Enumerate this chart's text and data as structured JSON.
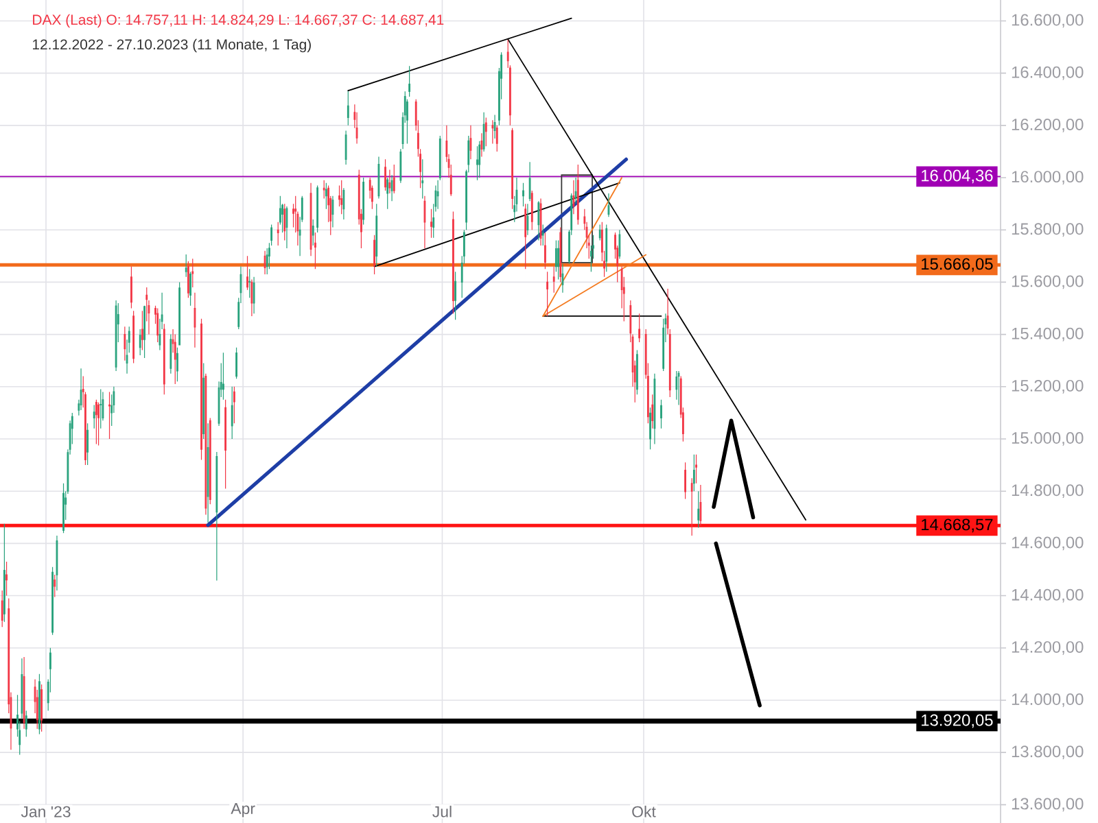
{
  "chart_data": {
    "type": "candlestick",
    "title": "DAX (Last)  O: 14.757,11  H: 14.824,29  L: 14.667,37  C: 14.687,41",
    "subtitle": "12.12.2022 - 27.10.2023   (11 Monate, 1 Tag)",
    "x": [
      "2022-12-12",
      "2022-12-13",
      "2022-12-14",
      "2022-12-15",
      "2022-12-16",
      "2022-12-19",
      "2022-12-20",
      "2022-12-21",
      "2022-12-22",
      "2022-12-23",
      "2022-12-27",
      "2022-12-28",
      "2022-12-29",
      "2022-12-30",
      "2023-01-02",
      "2023-01-03",
      "2023-01-04",
      "2023-01-05",
      "2023-01-06",
      "2023-01-09",
      "2023-01-10",
      "2023-01-11",
      "2023-01-12",
      "2023-01-13",
      "2023-01-16",
      "2023-01-17",
      "2023-01-18",
      "2023-01-19",
      "2023-01-20",
      "2023-01-23",
      "2023-01-24",
      "2023-01-25",
      "2023-01-26",
      "2023-01-27",
      "2023-01-30",
      "2023-01-31",
      "2023-02-01",
      "2023-02-02",
      "2023-02-03",
      "2023-02-06",
      "2023-02-07",
      "2023-02-08",
      "2023-02-09",
      "2023-02-10",
      "2023-02-13",
      "2023-02-14",
      "2023-02-15",
      "2023-02-16",
      "2023-02-17",
      "2023-02-20",
      "2023-02-21",
      "2023-02-22",
      "2023-02-23",
      "2023-02-24",
      "2023-02-27",
      "2023-02-28",
      "2023-03-01",
      "2023-03-02",
      "2023-03-03",
      "2023-03-06",
      "2023-03-07",
      "2023-03-08",
      "2023-03-09",
      "2023-03-10",
      "2023-03-13",
      "2023-03-14",
      "2023-03-15",
      "2023-03-16",
      "2023-03-17",
      "2023-03-20",
      "2023-03-21",
      "2023-03-22",
      "2023-03-23",
      "2023-03-24",
      "2023-03-27",
      "2023-03-28",
      "2023-03-29",
      "2023-03-30",
      "2023-03-31",
      "2023-04-03",
      "2023-04-04",
      "2023-04-05",
      "2023-04-06",
      "2023-04-11",
      "2023-04-12",
      "2023-04-13",
      "2023-04-14",
      "2023-04-17",
      "2023-04-18",
      "2023-04-19",
      "2023-04-20",
      "2023-04-21",
      "2023-04-24",
      "2023-04-25",
      "2023-04-26",
      "2023-04-27",
      "2023-04-28",
      "2023-05-02",
      "2023-05-03",
      "2023-05-04",
      "2023-05-05",
      "2023-05-08",
      "2023-05-09",
      "2023-05-10",
      "2023-05-11",
      "2023-05-12",
      "2023-05-15",
      "2023-05-16",
      "2023-05-17",
      "2023-05-18",
      "2023-05-19",
      "2023-05-22",
      "2023-05-23",
      "2023-05-24",
      "2023-05-25",
      "2023-05-26",
      "2023-05-29",
      "2023-05-30",
      "2023-05-31",
      "2023-06-01",
      "2023-06-02",
      "2023-06-05",
      "2023-06-06",
      "2023-06-07",
      "2023-06-08",
      "2023-06-09",
      "2023-06-12",
      "2023-06-13",
      "2023-06-14",
      "2023-06-15",
      "2023-06-16",
      "2023-06-19",
      "2023-06-20",
      "2023-06-21",
      "2023-06-22",
      "2023-06-23",
      "2023-06-26",
      "2023-06-27",
      "2023-06-28",
      "2023-06-29",
      "2023-06-30",
      "2023-07-03",
      "2023-07-04",
      "2023-07-05",
      "2023-07-06",
      "2023-07-07",
      "2023-07-10",
      "2023-07-11",
      "2023-07-12",
      "2023-07-13",
      "2023-07-14",
      "2023-07-17",
      "2023-07-18",
      "2023-07-19",
      "2023-07-20",
      "2023-07-21",
      "2023-07-24",
      "2023-07-25",
      "2023-07-26",
      "2023-07-27",
      "2023-07-28",
      "2023-07-31",
      "2023-08-01",
      "2023-08-02",
      "2023-08-03",
      "2023-08-04",
      "2023-08-07",
      "2023-08-08",
      "2023-08-09",
      "2023-08-10",
      "2023-08-11",
      "2023-08-14",
      "2023-08-15",
      "2023-08-16",
      "2023-08-17",
      "2023-08-18",
      "2023-08-21",
      "2023-08-22",
      "2023-08-23",
      "2023-08-24",
      "2023-08-25",
      "2023-08-28",
      "2023-08-29",
      "2023-08-30",
      "2023-08-31",
      "2023-09-01",
      "2023-09-04",
      "2023-09-05",
      "2023-09-06",
      "2023-09-07",
      "2023-09-08",
      "2023-09-11",
      "2023-09-12",
      "2023-09-13",
      "2023-09-14",
      "2023-09-15",
      "2023-09-18",
      "2023-09-19",
      "2023-09-20",
      "2023-09-21",
      "2023-09-22",
      "2023-09-25",
      "2023-09-26",
      "2023-09-27",
      "2023-09-28",
      "2023-09-29",
      "2023-10-02",
      "2023-10-03",
      "2023-10-04",
      "2023-10-05",
      "2023-10-06",
      "2023-10-09",
      "2023-10-10",
      "2023-10-11",
      "2023-10-12",
      "2023-10-13",
      "2023-10-16",
      "2023-10-17",
      "2023-10-18",
      "2023-10-19",
      "2023-10-20",
      "2023-10-23",
      "2023-10-24",
      "2023-10-25",
      "2023-10-26",
      "2023-10-27"
    ],
    "ohlc": [
      [
        14380,
        14420,
        14280,
        14306
      ],
      [
        14330,
        14675,
        14300,
        14497
      ],
      [
        14480,
        14530,
        14400,
        14460
      ],
      [
        14350,
        14390,
        13950,
        13986
      ],
      [
        14010,
        14030,
        13810,
        13893
      ],
      [
        13890,
        14020,
        13860,
        13943
      ],
      [
        13830,
        13920,
        13791,
        13884
      ],
      [
        13950,
        14160,
        13930,
        14098
      ],
      [
        14090,
        14165,
        13890,
        13914
      ],
      [
        13890,
        13960,
        13860,
        13940
      ],
      [
        14050,
        14080,
        13950,
        13995
      ],
      [
        14010,
        14040,
        13890,
        13925
      ],
      [
        13890,
        14100,
        13870,
        14071
      ],
      [
        14040,
        14060,
        13880,
        13924
      ],
      [
        13990,
        14080,
        13960,
        14069
      ],
      [
        14120,
        14200,
        14030,
        14181
      ],
      [
        14260,
        14510,
        14250,
        14490
      ],
      [
        14460,
        14480,
        14395,
        14436
      ],
      [
        14480,
        14630,
        14420,
        14610
      ],
      [
        14650,
        14830,
        14640,
        14792
      ],
      [
        14750,
        14800,
        14690,
        14774
      ],
      [
        14800,
        14960,
        14790,
        14948
      ],
      [
        14960,
        15070,
        14940,
        15058
      ],
      [
        15040,
        15100,
        14980,
        15086
      ],
      [
        15110,
        15150,
        15090,
        15134
      ],
      [
        15130,
        15270,
        15110,
        15187
      ],
      [
        15190,
        15240,
        15120,
        15181
      ],
      [
        15170,
        15180,
        14900,
        14920
      ],
      [
        14950,
        15060,
        14900,
        15033
      ],
      [
        15080,
        15130,
        15040,
        15103
      ],
      [
        15140,
        15150,
        14980,
        15093
      ],
      [
        15130,
        15140,
        14975,
        15081
      ],
      [
        15130,
        15190,
        15040,
        15132
      ],
      [
        15080,
        15180,
        15070,
        15150
      ],
      [
        15130,
        15180,
        15000,
        15126
      ],
      [
        15100,
        15170,
        15050,
        15128
      ],
      [
        15130,
        15200,
        15100,
        15181
      ],
      [
        15275,
        15530,
        15260,
        15509
      ],
      [
        15440,
        15520,
        15370,
        15476
      ],
      [
        15400,
        15430,
        15300,
        15345
      ],
      [
        15290,
        15380,
        15250,
        15320
      ],
      [
        15370,
        15430,
        15330,
        15412
      ],
      [
        15620,
        15660,
        15500,
        15523
      ],
      [
        15470,
        15490,
        15290,
        15308
      ],
      [
        15350,
        15420,
        15320,
        15397
      ],
      [
        15420,
        15490,
        15340,
        15380
      ],
      [
        15380,
        15510,
        15310,
        15507
      ],
      [
        15550,
        15580,
        15450,
        15534
      ],
      [
        15510,
        15530,
        15400,
        15482
      ],
      [
        15500,
        15510,
        15440,
        15477
      ],
      [
        15480,
        15500,
        15370,
        15397
      ],
      [
        15360,
        15460,
        15340,
        15400
      ],
      [
        15450,
        15560,
        15420,
        15475
      ],
      [
        15420,
        15440,
        15170,
        15210
      ],
      [
        15270,
        15400,
        15250,
        15381
      ],
      [
        15380,
        15420,
        15330,
        15365
      ],
      [
        15370,
        15400,
        15210,
        15305
      ],
      [
        15260,
        15350,
        15220,
        15327
      ],
      [
        15360,
        15600,
        15360,
        15578
      ],
      [
        15640,
        15706,
        15620,
        15654
      ],
      [
        15660,
        15680,
        15540,
        15559
      ],
      [
        15550,
        15640,
        15510,
        15631
      ],
      [
        15640,
        15690,
        15580,
        15633
      ],
      [
        15500,
        15560,
        15350,
        15428
      ],
      [
        15440,
        15460,
        14920,
        14960
      ],
      [
        15020,
        15290,
        15000,
        15233
      ],
      [
        15240,
        15250,
        14710,
        14735
      ],
      [
        14780,
        15060,
        14680,
        14967
      ],
      [
        15070,
        15080,
        14750,
        14768
      ],
      [
        14720,
        14950,
        14458,
        14933
      ],
      [
        15060,
        15220,
        15050,
        15195
      ],
      [
        15190,
        15290,
        15160,
        15216
      ],
      [
        15190,
        15330,
        15150,
        15210
      ],
      [
        15120,
        15150,
        14810,
        14957
      ],
      [
        15050,
        15200,
        15000,
        15128
      ],
      [
        15180,
        15200,
        15060,
        15142
      ],
      [
        15240,
        15350,
        15230,
        15329
      ],
      [
        15430,
        15540,
        15420,
        15523
      ],
      [
        15560,
        15660,
        15520,
        15629
      ],
      [
        15620,
        15700,
        15570,
        15581
      ],
      [
        15600,
        15650,
        15540,
        15603
      ],
      [
        15600,
        15610,
        15470,
        15520
      ],
      [
        15520,
        15620,
        15480,
        15597
      ],
      [
        15700,
        15720,
        15630,
        15655
      ],
      [
        15660,
        15730,
        15630,
        15704
      ],
      [
        15700,
        15750,
        15650,
        15730
      ],
      [
        15760,
        15820,
        15740,
        15808
      ],
      [
        15800,
        15830,
        15740,
        15789
      ],
      [
        15830,
        15930,
        15820,
        15882
      ],
      [
        15860,
        15900,
        15790,
        15895
      ],
      [
        15880,
        15900,
        15760,
        15796
      ],
      [
        15810,
        15890,
        15730,
        15882
      ],
      [
        15880,
        15900,
        15810,
        15863
      ],
      [
        15880,
        15930,
        15790,
        15872
      ],
      [
        15860,
        15870,
        15740,
        15796
      ],
      [
        15780,
        15850,
        15700,
        15800
      ],
      [
        15840,
        15930,
        15830,
        15922
      ],
      [
        15940,
        15980,
        15700,
        15726
      ],
      [
        15780,
        15840,
        15740,
        15815
      ],
      [
        15750,
        15790,
        15650,
        15734
      ],
      [
        15810,
        15970,
        15790,
        15961
      ],
      [
        15960,
        15990,
        15920,
        15953
      ],
      [
        15930,
        15980,
        15880,
        15955
      ],
      [
        15960,
        15970,
        15830,
        15896
      ],
      [
        15920,
        15930,
        15780,
        15834
      ],
      [
        15860,
        15930,
        15810,
        15914
      ],
      [
        15930,
        15970,
        15890,
        15917
      ],
      [
        15920,
        15990,
        15860,
        15897
      ],
      [
        15880,
        15960,
        15840,
        15951
      ],
      [
        16070,
        16180,
        16050,
        16163
      ],
      [
        16230,
        16331,
        16200,
        16275
      ],
      [
        16250,
        16280,
        16190,
        16223
      ],
      [
        16190,
        16250,
        16130,
        16152
      ],
      [
        16010,
        16030,
        15820,
        15842
      ],
      [
        15860,
        15880,
        15730,
        15793
      ],
      [
        15840,
        16000,
        15820,
        15983
      ],
      [
        15990,
        16000,
        15920,
        15952
      ],
      [
        15960,
        15970,
        15880,
        15909
      ],
      [
        15760,
        15780,
        15630,
        15664
      ],
      [
        15700,
        15900,
        15660,
        15853
      ],
      [
        15930,
        16080,
        15920,
        16051
      ],
      [
        16040,
        16070,
        15950,
        15964
      ],
      [
        15940,
        16000,
        15880,
        15992
      ],
      [
        15980,
        16030,
        15940,
        15961
      ],
      [
        15950,
        16010,
        15910,
        15989
      ],
      [
        16000,
        16050,
        15940,
        15950
      ],
      [
        15990,
        16110,
        15980,
        16098
      ],
      [
        16130,
        16250,
        16110,
        16230
      ],
      [
        16240,
        16330,
        16210,
        16311
      ],
      [
        16220,
        16300,
        16130,
        16290
      ],
      [
        16330,
        16427,
        16310,
        16358
      ],
      [
        16290,
        16300,
        16180,
        16201
      ],
      [
        16170,
        16220,
        16080,
        16111
      ],
      [
        16090,
        16110,
        15960,
        16023
      ],
      [
        15980,
        16070,
        15920,
        15988
      ],
      [
        15910,
        15930,
        15730,
        15830
      ],
      [
        15830,
        15880,
        15770,
        15813
      ],
      [
        15810,
        15900,
        15770,
        15846
      ],
      [
        15890,
        15970,
        15870,
        15949
      ],
      [
        15930,
        15990,
        15880,
        15946
      ],
      [
        16000,
        16160,
        15990,
        16148
      ],
      [
        16140,
        16200,
        16060,
        16081
      ],
      [
        16070,
        16090,
        16000,
        16039
      ],
      [
        16010,
        16050,
        15930,
        15938
      ],
      [
        15840,
        15870,
        15480,
        15529
      ],
      [
        15530,
        15640,
        15456,
        15603
      ],
      [
        15600,
        15700,
        15540,
        15673
      ],
      [
        15700,
        15800,
        15670,
        15790
      ],
      [
        15830,
        16030,
        15800,
        16023
      ],
      [
        16050,
        16160,
        16020,
        16141
      ],
      [
        16150,
        16200,
        16070,
        16105
      ],
      [
        16050,
        16120,
        15990,
        16068
      ],
      [
        16050,
        16140,
        16000,
        16125
      ],
      [
        16140,
        16170,
        16080,
        16109
      ],
      [
        16110,
        16250,
        16100,
        16204
      ],
      [
        16210,
        16230,
        16120,
        16177
      ],
      [
        16200,
        16220,
        16130,
        16190
      ],
      [
        16180,
        16240,
        16150,
        16211
      ],
      [
        16190,
        16200,
        16100,
        16131
      ],
      [
        16220,
        16420,
        16200,
        16406
      ],
      [
        16380,
        16480,
        16300,
        16469
      ],
      [
        16480,
        16528,
        16420,
        16447
      ],
      [
        16420,
        16430,
        16200,
        16240
      ],
      [
        16180,
        16190,
        15880,
        15920
      ],
      [
        15870,
        15930,
        15830,
        15893
      ],
      [
        15900,
        16000,
        15870,
        15952
      ],
      [
        15930,
        15980,
        15890,
        15950
      ],
      [
        15880,
        15900,
        15650,
        15774
      ],
      [
        15800,
        15900,
        15780,
        15852
      ],
      [
        15920,
        16060,
        15910,
        15997
      ],
      [
        15940,
        15950,
        15800,
        15832
      ],
      [
        15820,
        15910,
        15760,
        15904
      ],
      [
        15900,
        15920,
        15740,
        15768
      ],
      [
        15780,
        15820,
        15740,
        15789
      ],
      [
        15740,
        15790,
        15650,
        15676
      ],
      [
        15600,
        15640,
        15470,
        15574
      ],
      [
        15620,
        15660,
        15560,
        15603
      ],
      [
        15660,
        15760,
        15640,
        15728
      ],
      [
        15660,
        15760,
        15610,
        15729
      ],
      [
        15790,
        15810,
        15600,
        15621
      ],
      [
        15590,
        15670,
        15560,
        15632
      ],
      [
        15680,
        15800,
        15670,
        15792
      ],
      [
        15800,
        15940,
        15780,
        15930
      ],
      [
        15930,
        15990,
        15860,
        15891
      ],
      [
        15920,
        16000,
        15900,
        15947
      ],
      [
        15990,
        16050,
        15820,
        15840
      ],
      [
        15850,
        15880,
        15800,
        15825
      ],
      [
        15810,
        15830,
        15730,
        15772
      ],
      [
        15750,
        15780,
        15690,
        15741
      ],
      [
        15700,
        15740,
        15640,
        15718
      ],
      [
        15730,
        15780,
        15690,
        15740
      ],
      [
        15770,
        15820,
        15760,
        15800
      ],
      [
        15800,
        15830,
        15680,
        15715
      ],
      [
        15680,
        15720,
        15620,
        15654
      ],
      [
        15680,
        15820,
        15640,
        15805
      ],
      [
        15860,
        15940,
        15850,
        15893
      ],
      [
        15780,
        15790,
        15690,
        15727
      ],
      [
        15730,
        15740,
        15600,
        15664
      ],
      [
        15700,
        15800,
        15690,
        15782
      ],
      [
        15650,
        15660,
        15500,
        15571
      ],
      [
        15580,
        15620,
        15450,
        15557
      ],
      [
        15510,
        15530,
        15370,
        15405
      ],
      [
        15390,
        15400,
        15200,
        15256
      ],
      [
        15280,
        15300,
        15140,
        15218
      ],
      [
        15190,
        15340,
        15170,
        15323
      ],
      [
        15420,
        15480,
        15370,
        15387
      ],
      [
        15400,
        15420,
        15230,
        15247
      ],
      [
        15240,
        15290,
        15060,
        15085
      ],
      [
        15000,
        15120,
        14960,
        15099
      ],
      [
        15130,
        15170,
        15040,
        15070
      ],
      [
        15040,
        15250,
        14980,
        15229
      ],
      [
        15080,
        15150,
        15040,
        15128
      ],
      [
        15270,
        15460,
        15260,
        15424
      ],
      [
        15440,
        15480,
        15370,
        15460
      ],
      [
        15470,
        15575,
        15400,
        15425
      ],
      [
        15400,
        15420,
        15160,
        15187
      ],
      [
        15190,
        15260,
        15150,
        15237
      ],
      [
        15240,
        15260,
        15130,
        15251
      ],
      [
        15230,
        15240,
        15080,
        15095
      ],
      [
        15100,
        15120,
        14990,
        15020
      ],
      [
        14880,
        14910,
        14770,
        14798
      ],
      [
        14830,
        14850,
        14630,
        14800
      ],
      [
        14830,
        14940,
        14800,
        14880
      ],
      [
        14900,
        14940,
        14830,
        14892
      ],
      [
        14690,
        14800,
        14660,
        14731
      ],
      [
        14757.11,
        14824.29,
        14667.37,
        14687.41
      ]
    ],
    "series": [
      {
        "type": "line",
        "color": "#1e3ea6",
        "x": [
          "2023-03-16",
          "2023-09-23"
        ],
        "values": [
          14670,
          16070
        ]
      },
      {
        "type": "line",
        "color": "#000000",
        "x": [
          "2023-07-31",
          "2023-12-14"
        ],
        "values": [
          16530,
          14690
        ]
      },
      {
        "type": "line",
        "color": "#000000",
        "x": [
          "2023-05-19",
          "2023-08-29"
        ],
        "values": [
          16333,
          16610
        ]
      },
      {
        "type": "line",
        "color": "#000000",
        "x": [
          "2023-05-31",
          "2023-09-20"
        ],
        "values": [
          15660,
          15980
        ]
      },
      {
        "type": "line",
        "color": "#000000",
        "x": [
          "2023-08-16",
          "2023-10-09"
        ],
        "values": [
          15470,
          15470
        ]
      },
      {
        "type": "line",
        "color": "#f47b20",
        "x": [
          "2023-08-16",
          "2023-09-21"
        ],
        "values": [
          15470,
          16000
        ]
      },
      {
        "type": "line",
        "color": "#f47b20",
        "x": [
          "2023-08-16",
          "2023-10-02"
        ],
        "values": [
          15470,
          15705
        ]
      },
      {
        "type": "line",
        "color": "#000000",
        "x": [
          "2023-11-02",
          "2023-11-10",
          "2023-11-20"
        ],
        "values": [
          14740,
          15070,
          14700
        ]
      },
      {
        "type": "line",
        "color": "#000000",
        "x": [
          "2023-11-03",
          "2023-11-23"
        ],
        "values": [
          14600,
          13980
        ]
      }
    ],
    "ref_lines": [
      {
        "axis": "y",
        "value": 16004.36,
        "label": "16.004,36",
        "color": "#a000b4"
      },
      {
        "axis": "y",
        "value": 15666.05,
        "label": "15.666,05",
        "color": "#f26a1b"
      },
      {
        "axis": "y",
        "value": 14668.57,
        "label": "14.668,57",
        "color": "#ff1414"
      },
      {
        "axis": "y",
        "value": 13920.05,
        "label": "13.920,05",
        "color": "#000000"
      }
    ],
    "xlim": [
      "2022-12-11",
      "2024-03-12"
    ],
    "ylim": [
      13530,
      16680
    ],
    "xticks": [
      {
        "value": "2023-01-01",
        "label": "Jan '23"
      },
      {
        "value": "2023-04-01",
        "label": "Apr"
      },
      {
        "value": "2023-07-01",
        "label": "Jul"
      },
      {
        "value": "2023-10-01",
        "label": "Okt"
      }
    ],
    "yticks": [
      {
        "value": 13600,
        "label": "13.600,00"
      },
      {
        "value": 13800,
        "label": "13.800,00"
      },
      {
        "value": 14000,
        "label": "14.000,00"
      },
      {
        "value": 14200,
        "label": "14.200,00"
      },
      {
        "value": 14400,
        "label": "14.400,00"
      },
      {
        "value": 14600,
        "label": "14.600,00"
      },
      {
        "value": 14800,
        "label": "14.800,00"
      },
      {
        "value": 15000,
        "label": "15.000,00"
      },
      {
        "value": 15200,
        "label": "15.200,00"
      },
      {
        "value": 15400,
        "label": "15.400,00"
      },
      {
        "value": 15600,
        "label": "15.600,00"
      },
      {
        "value": 15800,
        "label": "15.800,00"
      },
      {
        "value": 16000,
        "label": "16.000,00"
      },
      {
        "value": 16200,
        "label": "16.200,00"
      },
      {
        "value": 16400,
        "label": "16.400,00"
      },
      {
        "value": 16600,
        "label": "16.600,00"
      }
    ],
    "grid": true
  }
}
